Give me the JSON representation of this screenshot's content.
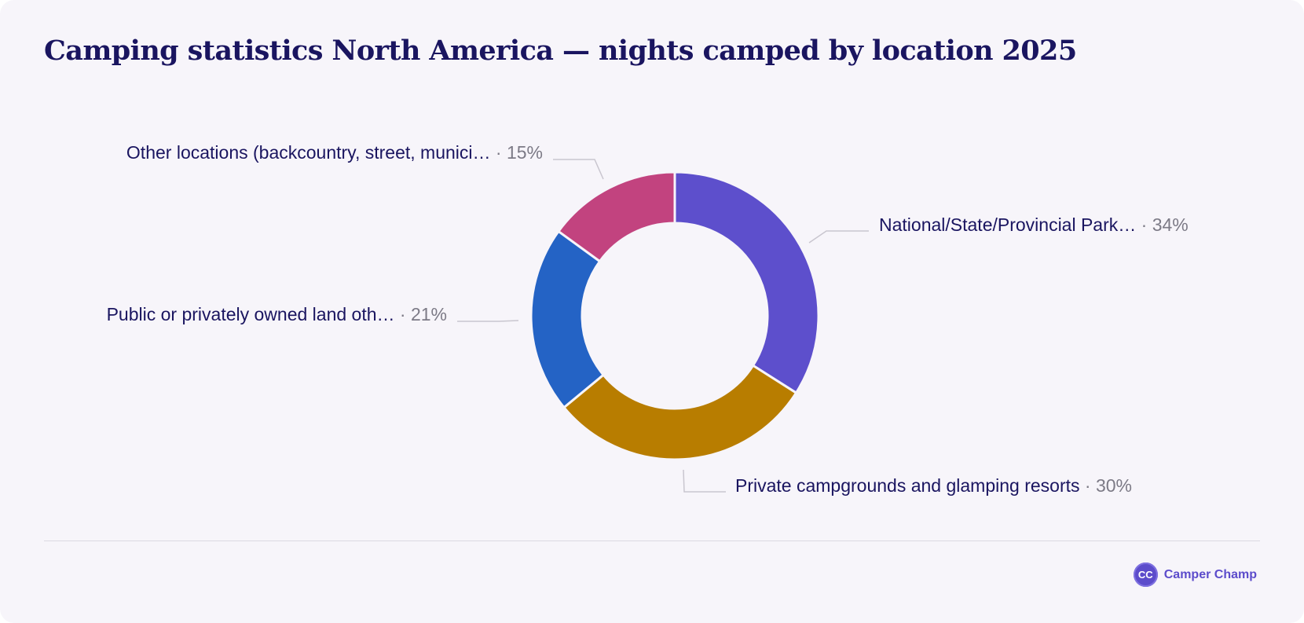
{
  "title": "Camping statistics North America — nights camped by location 2025",
  "brand": {
    "logo_text": "CC",
    "name": "Camper Champ"
  },
  "chart_data": {
    "type": "pie",
    "donut": true,
    "title": "Camping statistics North America — nights camped by location 2025",
    "value_unit": "%",
    "slices": [
      {
        "label": "National/State/Provincial Park…",
        "value": 34,
        "color": "#5d4fcc"
      },
      {
        "label": "Private campgrounds and glamping resorts",
        "value": 30,
        "color": "#b87d00"
      },
      {
        "label": "Public or privately owned land oth…",
        "value": 21,
        "color": "#2463c5"
      },
      {
        "label": "Other locations (backcountry, street, munici…",
        "value": 15,
        "color": "#c2437f"
      }
    ]
  }
}
